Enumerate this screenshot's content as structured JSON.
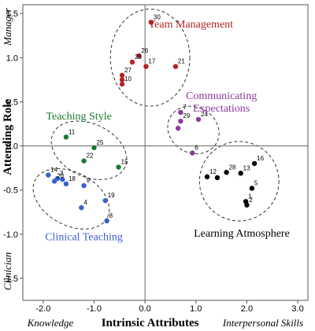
{
  "chart_data": {
    "type": "scatter",
    "title": "",
    "xlabel": "Intrinsic Attributes",
    "ylabel": "Attending Role",
    "x_end_labels": {
      "left": "Knowledge",
      "right": "Interpersonal Skills"
    },
    "y_end_labels": {
      "top": "Manager",
      "bottom": "Clinician"
    },
    "xlim": [
      -2.4,
      3.2
    ],
    "ylim": [
      -1.75,
      1.6
    ],
    "x_ticks": [
      "-2.0",
      "-1.0",
      "0.0",
      "1.0",
      "2.0",
      "3.0"
    ],
    "x_tick_values": [
      -2,
      -1,
      0,
      1,
      2,
      3
    ],
    "y_ticks": [
      "1.5",
      "1.0",
      "0.5",
      "0.0",
      "-0.5",
      "-1.0",
      "-1.5"
    ],
    "y_tick_values": [
      1.5,
      1.0,
      0.5,
      0.0,
      -0.5,
      -1.0,
      -1.5
    ],
    "grid": false,
    "groups": [
      {
        "name": "Team Management",
        "color": "#b22222",
        "ellipse": {
          "cx": 0.1,
          "cy": 1.0,
          "rx": 0.78,
          "ry": 0.55,
          "rot": 0
        },
        "points": [
          {
            "label": "30",
            "x": 0.12,
            "y": 1.4
          },
          {
            "label": "26",
            "x": -0.12,
            "y": 1.02
          },
          {
            "label": "23",
            "x": -0.25,
            "y": 0.95
          },
          {
            "label": "17",
            "x": 0.02,
            "y": 0.9
          },
          {
            "label": "21",
            "x": 0.6,
            "y": 0.9
          },
          {
            "label": "27",
            "x": -0.45,
            "y": 0.8
          },
          {
            "label": "",
            "x": -0.45,
            "y": 0.75
          },
          {
            "label": "10",
            "x": -0.45,
            "y": 0.7
          }
        ]
      },
      {
        "name": "Communicating Expectations",
        "color": "#8b3a9e",
        "ellipse": {
          "cx": 0.95,
          "cy": 0.18,
          "rx": 0.45,
          "ry": 0.3,
          "rot": -60
        },
        "points": [
          {
            "label": "7",
            "x": 0.7,
            "y": 0.38
          },
          {
            "label": "24",
            "x": 1.05,
            "y": 0.3
          },
          {
            "label": "29",
            "x": 0.7,
            "y": 0.28
          },
          {
            "label": "",
            "x": 0.65,
            "y": 0.2
          },
          {
            "label": "6",
            "x": 0.93,
            "y": -0.08
          }
        ]
      },
      {
        "name": "Teaching Style",
        "color": "#1a7a2e",
        "ellipse": {
          "cx": -1.1,
          "cy": -0.05,
          "rx": 0.78,
          "ry": 0.3,
          "rot": 25
        },
        "points": [
          {
            "label": "11",
            "x": -1.55,
            "y": 0.1
          },
          {
            "label": "25",
            "x": -1.0,
            "y": -0.02
          },
          {
            "label": "22",
            "x": -1.2,
            "y": -0.17
          },
          {
            "label": "15",
            "x": -0.52,
            "y": -0.24
          }
        ]
      },
      {
        "name": "Clinical Teaching",
        "color": "#3a5fcd",
        "ellipse": {
          "cx": -1.45,
          "cy": -0.6,
          "rx": 0.8,
          "ry": 0.3,
          "rot": 28
        },
        "points": [
          {
            "label": "14",
            "x": -1.9,
            "y": -0.33
          },
          {
            "label": "3",
            "x": -1.72,
            "y": -0.37
          },
          {
            "label": "",
            "x": -1.62,
            "y": -0.38
          },
          {
            "label": "20",
            "x": -1.78,
            "y": -0.4
          },
          {
            "label": "18",
            "x": -1.55,
            "y": -0.43
          },
          {
            "label": "9",
            "x": -1.2,
            "y": -0.45
          },
          {
            "label": "19",
            "x": -0.78,
            "y": -0.62
          },
          {
            "label": "4",
            "x": -1.25,
            "y": -0.7
          },
          {
            "label": "8",
            "x": -0.75,
            "y": -0.85
          }
        ]
      },
      {
        "name": "Learning Atmosphere",
        "color": "#000000",
        "ellipse": {
          "cx": 1.85,
          "cy": -0.4,
          "rx": 0.78,
          "ry": 0.45,
          "rot": 0
        },
        "points": [
          {
            "label": "16",
            "x": 2.15,
            "y": -0.2
          },
          {
            "label": "28",
            "x": 1.6,
            "y": -0.3
          },
          {
            "label": "13",
            "x": 1.88,
            "y": -0.31
          },
          {
            "label": "12",
            "x": 1.22,
            "y": -0.35
          },
          {
            "label": "",
            "x": 1.42,
            "y": -0.36
          },
          {
            "label": "5",
            "x": 2.1,
            "y": -0.48
          },
          {
            "label": "1",
            "x": 1.98,
            "y": -0.63
          },
          {
            "label": "2",
            "x": 2.0,
            "y": -0.67
          }
        ]
      }
    ]
  }
}
